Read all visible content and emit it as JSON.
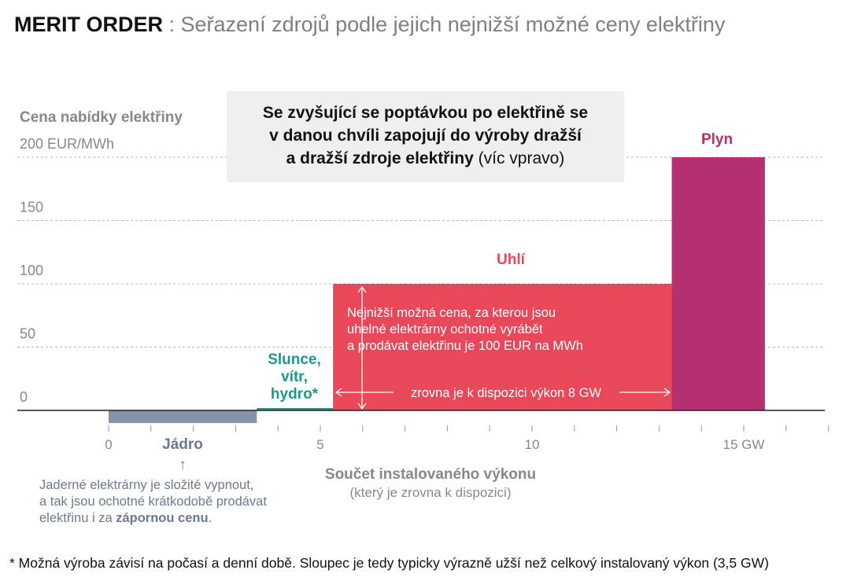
{
  "header": {
    "title_bold": "MERIT ORDER",
    "title_rest": " : Seřazení zdrojů podle jejich nejnižší možné ceny elektřiny"
  },
  "callout": {
    "line1": "Se zvyšující se poptávkou po elektřině se",
    "line2": "v danou chvíli zapojují do výroby dražší",
    "line3_bold": "a dražší zdroje elektřiny",
    "line3_rest": " (víc vpravo)"
  },
  "footnote": "* Možná výroba závisí na počasí a denní době. Sloupec je tedy typicky výrazně užší než celkový instalovaný výkon (3,5 GW)",
  "chart_data": {
    "type": "bar",
    "ylabel": "Cena nabídky elektřiny",
    "xlabel": "Součet instalovaného výkonu",
    "xlabel_sub": "(který je zrovna k dispozici)",
    "ylim": [
      -10,
      200
    ],
    "xlim": [
      0,
      17
    ],
    "yticks": [
      {
        "value": 200,
        "label": "200 EUR/MWh"
      },
      {
        "value": 150,
        "label": "150"
      },
      {
        "value": 100,
        "label": "100"
      },
      {
        "value": 50,
        "label": "50"
      },
      {
        "value": 0,
        "label": "0"
      }
    ],
    "xticks": [
      {
        "value": 0,
        "label": "0"
      },
      {
        "value": 5,
        "label": "5"
      },
      {
        "value": 10,
        "label": "10"
      },
      {
        "value": 15,
        "label": "15 GW"
      }
    ],
    "series": [
      {
        "name": "Jádro",
        "x_start": 0,
        "x_end": 3.5,
        "value": -10,
        "color": "#8593a8"
      },
      {
        "name": "Slunce, vítr, hydro*",
        "x_start": 3.5,
        "x_end": 5.3,
        "value": 1,
        "color": "#1a9b8a"
      },
      {
        "name": "Uhlí",
        "x_start": 5.3,
        "x_end": 13.3,
        "value": 100,
        "color": "#e8485a"
      },
      {
        "name": "Plyn",
        "x_start": 13.3,
        "x_end": 15.5,
        "value": 200,
        "color": "#b4306f"
      }
    ],
    "annotations": {
      "uhli_note": [
        "Nejnižší možná cena, za kterou jsou",
        "uhelné elektrárny ochotné vyrábět",
        "a prodávat elektřinu je 100 EUR na MWh"
      ],
      "uhli_width": "zrovna je k dispozici výkon 8 GW",
      "jadro_note_line1": "Jaderné elektrárny je složité vypnout,",
      "jadro_note_line2": "a tak jsou ochotné krátkodobě prodávat",
      "jadro_note_line3_pre": "elektřinu i za ",
      "jadro_note_line3_bold": "zápornou cenu",
      "jadro_note_line3_post": ".",
      "jadro_arrow": "↑"
    }
  }
}
